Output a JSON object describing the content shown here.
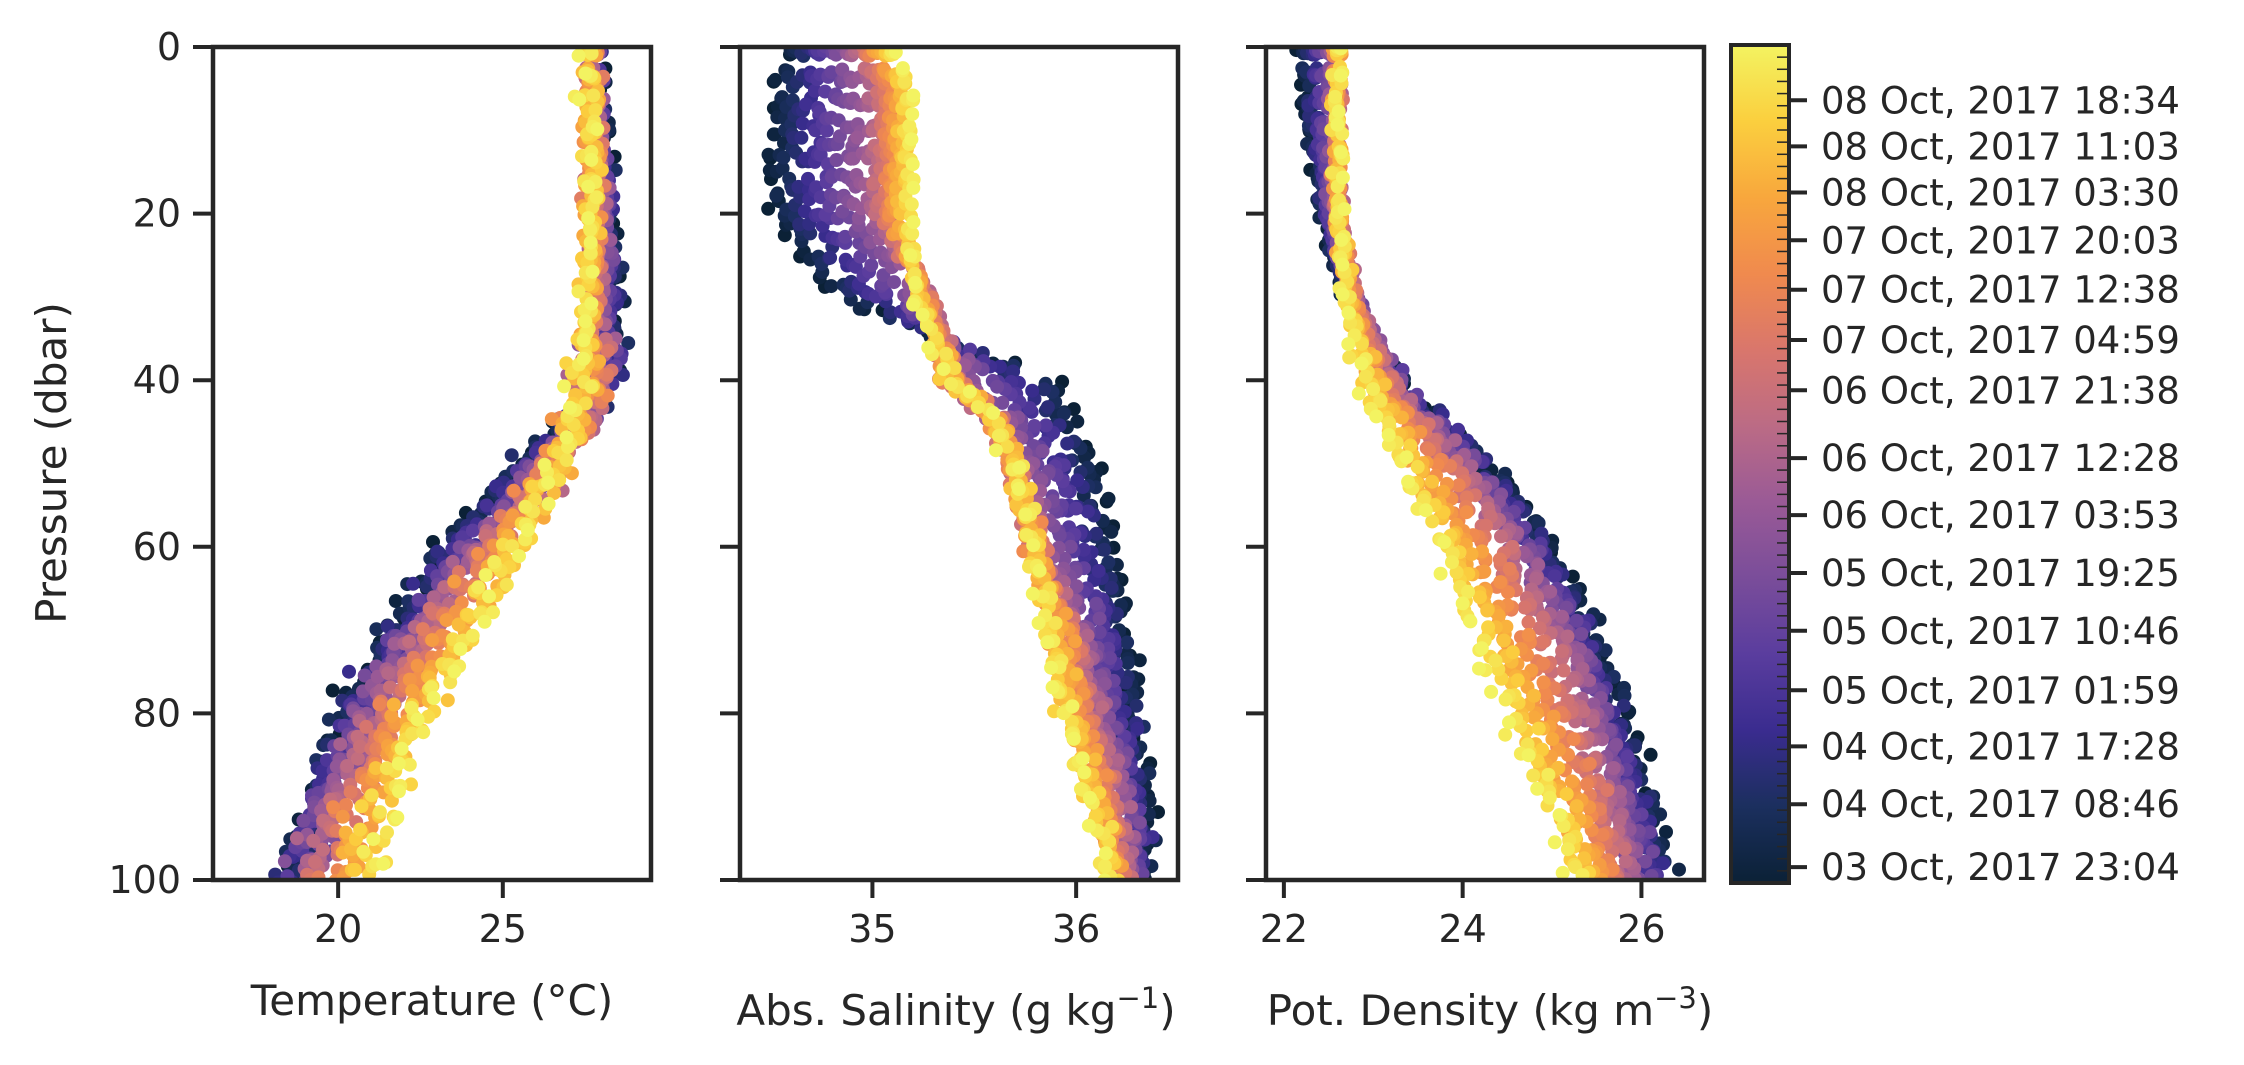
{
  "colors": {
    "colormap_stops": [
      "#0b2136",
      "#1b2f5e",
      "#3a2c8f",
      "#5a3d9e",
      "#7a4d9a",
      "#9a5a96",
      "#bb6b85",
      "#d9766c",
      "#f08a4e",
      "#f8a73d",
      "#fbcf3e",
      "#f3f361"
    ],
    "frame": "#262626"
  },
  "chart_data": [
    {
      "type": "scatter",
      "xlabel": "Temperature (°C)",
      "ylabel": "Pressure (dbar)",
      "ylim": [
        100,
        0
      ],
      "xlim": [
        16.2,
        29.5
      ],
      "xticks": [
        20,
        25
      ],
      "xtick_labels": [
        "20",
        "25"
      ],
      "yticks": [
        0,
        20,
        40,
        60,
        80,
        100
      ],
      "ytick_labels": [
        "0",
        "20",
        "40",
        "60",
        "80",
        "100"
      ],
      "profile": {
        "pressure": [
          0,
          5,
          20,
          30,
          40,
          45,
          50,
          60,
          70,
          80,
          90,
          100
        ],
        "early": [
          27.8,
          27.9,
          28.3,
          28.5,
          28.2,
          27.0,
          25.5,
          23.0,
          21.5,
          20.2,
          19.2,
          18.5
        ],
        "mid": [
          27.7,
          27.7,
          27.9,
          27.9,
          27.8,
          27.5,
          26.5,
          24.5,
          22.5,
          21.0,
          19.8,
          19.0
        ],
        "late": [
          27.5,
          27.6,
          27.6,
          27.6,
          27.5,
          27.2,
          26.5,
          25.5,
          24.2,
          22.8,
          21.8,
          21.0
        ]
      }
    },
    {
      "type": "scatter",
      "xlabel": "Abs. Salinity (g kg⁻¹)",
      "xlabel_main": "Abs. Salinity (g kg",
      "xlabel_sup": "−1",
      "xlabel_tail": ")",
      "ylim": [
        100,
        0
      ],
      "xlim": [
        34.35,
        36.5
      ],
      "xticks": [
        35,
        36
      ],
      "xtick_labels": [
        "35",
        "36"
      ],
      "yticks": [
        0,
        20,
        40,
        60,
        80,
        100
      ],
      "profile": {
        "pressure": [
          0,
          5,
          20,
          30,
          40,
          45,
          50,
          60,
          70,
          80,
          90,
          100
        ],
        "early": [
          34.6,
          34.5,
          34.5,
          34.8,
          35.9,
          36.0,
          36.1,
          36.2,
          36.25,
          36.3,
          36.35,
          36.35
        ],
        "mid": [
          34.9,
          35.0,
          35.0,
          35.3,
          35.4,
          35.6,
          35.7,
          35.8,
          36.0,
          36.1,
          36.2,
          36.25
        ],
        "late": [
          35.1,
          35.2,
          35.2,
          35.2,
          35.4,
          35.6,
          35.7,
          35.8,
          35.85,
          35.95,
          36.05,
          36.15
        ]
      }
    },
    {
      "type": "scatter",
      "xlabel": "Pot. Density (kg m⁻³)",
      "xlabel_main": "Pot. Density (kg m",
      "xlabel_sup": "−3",
      "xlabel_tail": ")",
      "ylim": [
        100,
        0
      ],
      "xlim": [
        21.8,
        26.7
      ],
      "xticks": [
        22,
        24,
        26
      ],
      "xtick_labels": [
        "22",
        "24",
        "26"
      ],
      "yticks": [
        0,
        20,
        40,
        60,
        80,
        100
      ],
      "profile": {
        "pressure": [
          0,
          5,
          20,
          30,
          40,
          45,
          50,
          60,
          70,
          80,
          90,
          100
        ],
        "early": [
          22.2,
          22.2,
          22.4,
          22.7,
          23.2,
          23.8,
          24.3,
          25.0,
          25.5,
          25.8,
          26.1,
          26.3
        ],
        "mid": [
          22.6,
          22.6,
          22.6,
          22.8,
          23.2,
          23.6,
          24.0,
          24.6,
          25.1,
          25.4,
          25.7,
          25.9
        ],
        "late": [
          22.6,
          22.6,
          22.6,
          22.7,
          22.9,
          23.1,
          23.3,
          23.7,
          24.1,
          24.5,
          24.9,
          25.3
        ]
      }
    },
    {
      "type": "colorbar",
      "tick_labels": [
        {
          "label": "08 Oct, 2017 18:34",
          "pos": 0.934
        },
        {
          "label": "08 Oct, 2017 11:03",
          "pos": 0.879
        },
        {
          "label": "08 Oct, 2017 03:30",
          "pos": 0.824
        },
        {
          "label": "07 Oct, 2017 20:03",
          "pos": 0.767
        },
        {
          "label": "07 Oct, 2017 12:38",
          "pos": 0.708
        },
        {
          "label": "07 Oct, 2017 04:59",
          "pos": 0.648
        },
        {
          "label": "06 Oct, 2017 21:38",
          "pos": 0.588
        },
        {
          "label": "06 Oct, 2017 12:28",
          "pos": 0.507
        },
        {
          "label": "06 Oct, 2017 03:53",
          "pos": 0.439
        },
        {
          "label": "05 Oct, 2017 19:25",
          "pos": 0.37
        },
        {
          "label": "05 Oct, 2017 10:46",
          "pos": 0.301
        },
        {
          "label": "05 Oct, 2017 01:59",
          "pos": 0.23
        },
        {
          "label": "04 Oct, 2017 17:28",
          "pos": 0.163
        },
        {
          "label": "04 Oct, 2017 08:46",
          "pos": 0.094
        },
        {
          "label": "03 Oct, 2017 23:04",
          "pos": 0.019
        }
      ]
    }
  ]
}
